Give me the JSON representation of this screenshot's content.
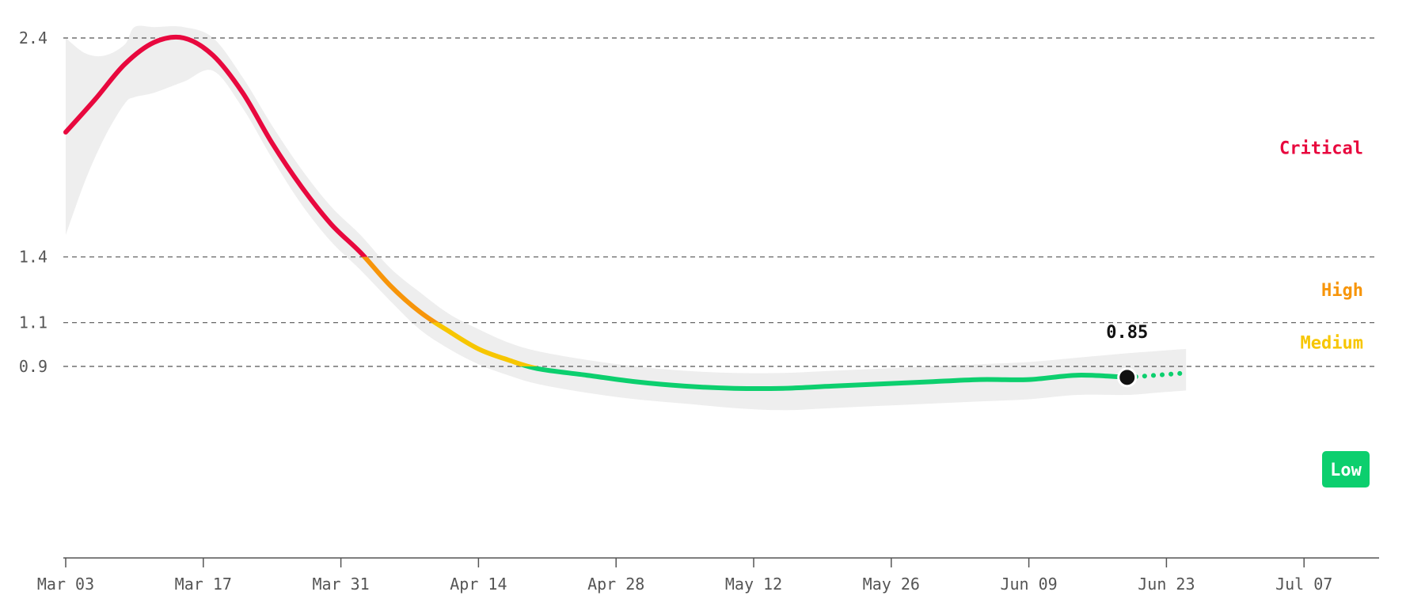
{
  "chart_data": {
    "type": "line",
    "title": "",
    "xlabel": "",
    "ylabel": "",
    "x_ticks": [
      "Mar 03",
      "Mar 17",
      "Mar 31",
      "Apr 14",
      "Apr 28",
      "May 12",
      "May 26",
      "Jun 09",
      "Jun 23",
      "Jul 07"
    ],
    "xlim": [
      "2020-03-03",
      "2020-07-13"
    ],
    "y_ticks": [
      0.9,
      1.1,
      1.4,
      2.4
    ],
    "y_tick_labels": [
      "0.9",
      "1.1",
      "1.4",
      "2.4"
    ],
    "ylim": [
      0.0,
      2.55
    ],
    "grid": "dashed horizontal lines at y ticks",
    "thresholds": [
      {
        "name": "Critical",
        "min": 1.4,
        "color": "#e8083e"
      },
      {
        "name": "High",
        "min": 1.1,
        "color": "#f7950a"
      },
      {
        "name": "Medium",
        "min": 0.9,
        "color": "#f7c600"
      },
      {
        "name": "Low",
        "min": 0.0,
        "color": "#0ccf6e"
      }
    ],
    "series": [
      {
        "type": "line",
        "x": [
          "2020-03-03",
          "2020-03-06",
          "2020-03-09",
          "2020-03-12",
          "2020-03-15",
          "2020-03-18",
          "2020-03-21",
          "2020-03-24",
          "2020-03-27",
          "2020-03-30",
          "2020-04-02",
          "2020-04-05",
          "2020-04-08",
          "2020-04-11",
          "2020-04-14",
          "2020-04-17",
          "2020-04-20",
          "2020-04-25",
          "2020-04-30",
          "2020-05-05",
          "2020-05-10",
          "2020-05-15",
          "2020-05-20",
          "2020-05-25",
          "2020-05-30",
          "2020-06-04",
          "2020-06-09",
          "2020-06-14",
          "2020-06-19"
        ],
        "y": [
          1.97,
          2.12,
          2.28,
          2.38,
          2.4,
          2.32,
          2.15,
          1.92,
          1.72,
          1.55,
          1.42,
          1.27,
          1.15,
          1.06,
          0.98,
          0.93,
          0.89,
          0.86,
          0.83,
          0.81,
          0.8,
          0.8,
          0.81,
          0.82,
          0.83,
          0.84,
          0.84,
          0.86,
          0.85
        ]
      },
      {
        "type": "projection",
        "x": [
          "2020-06-19",
          "2020-06-22",
          "2020-06-25"
        ],
        "y": [
          0.85,
          0.86,
          0.87
        ]
      }
    ],
    "uncertainty_band": {
      "x": [
        "2020-03-03",
        "2020-03-05",
        "2020-03-07",
        "2020-03-09",
        "2020-03-10",
        "2020-03-12",
        "2020-03-15",
        "2020-03-18",
        "2020-03-21",
        "2020-03-24",
        "2020-03-27",
        "2020-03-30",
        "2020-04-02",
        "2020-04-05",
        "2020-04-08",
        "2020-04-11",
        "2020-04-14",
        "2020-04-17",
        "2020-04-20",
        "2020-04-25",
        "2020-04-30",
        "2020-05-05",
        "2020-05-10",
        "2020-05-15",
        "2020-05-20",
        "2020-05-25",
        "2020-05-30",
        "2020-06-04",
        "2020-06-09",
        "2020-06-14",
        "2020-06-19",
        "2020-06-22",
        "2020-06-25"
      ],
      "upper": [
        2.4,
        2.33,
        2.32,
        2.37,
        2.45,
        2.45,
        2.45,
        2.4,
        2.22,
        2.0,
        1.8,
        1.63,
        1.5,
        1.35,
        1.24,
        1.14,
        1.07,
        1.01,
        0.97,
        0.93,
        0.9,
        0.88,
        0.87,
        0.87,
        0.88,
        0.89,
        0.9,
        0.91,
        0.92,
        0.94,
        0.96,
        0.97,
        0.98
      ],
      "lower": [
        1.5,
        1.75,
        1.95,
        2.1,
        2.13,
        2.15,
        2.2,
        2.25,
        2.08,
        1.85,
        1.64,
        1.47,
        1.34,
        1.2,
        1.07,
        0.98,
        0.91,
        0.86,
        0.82,
        0.78,
        0.75,
        0.73,
        0.71,
        0.7,
        0.71,
        0.72,
        0.73,
        0.74,
        0.75,
        0.77,
        0.77,
        0.78,
        0.79
      ]
    },
    "current": {
      "x": "2020-06-19",
      "y": 0.85,
      "label": "0.85"
    },
    "level_labels": [
      {
        "text": "Critical",
        "color": "#e8083e",
        "y": 1.9
      },
      {
        "text": "High",
        "color": "#f7950a",
        "y": 1.25
      },
      {
        "text": "Medium",
        "color": "#f7c600",
        "y": 1.01
      },
      {
        "text": "Low",
        "color": "#ffffff",
        "bg": "#0ccf6e",
        "y": 0.43
      }
    ],
    "colors": {
      "band": "#eeeeee",
      "grid": "#555555",
      "axis": "#555555",
      "marker": "#111111"
    }
  }
}
